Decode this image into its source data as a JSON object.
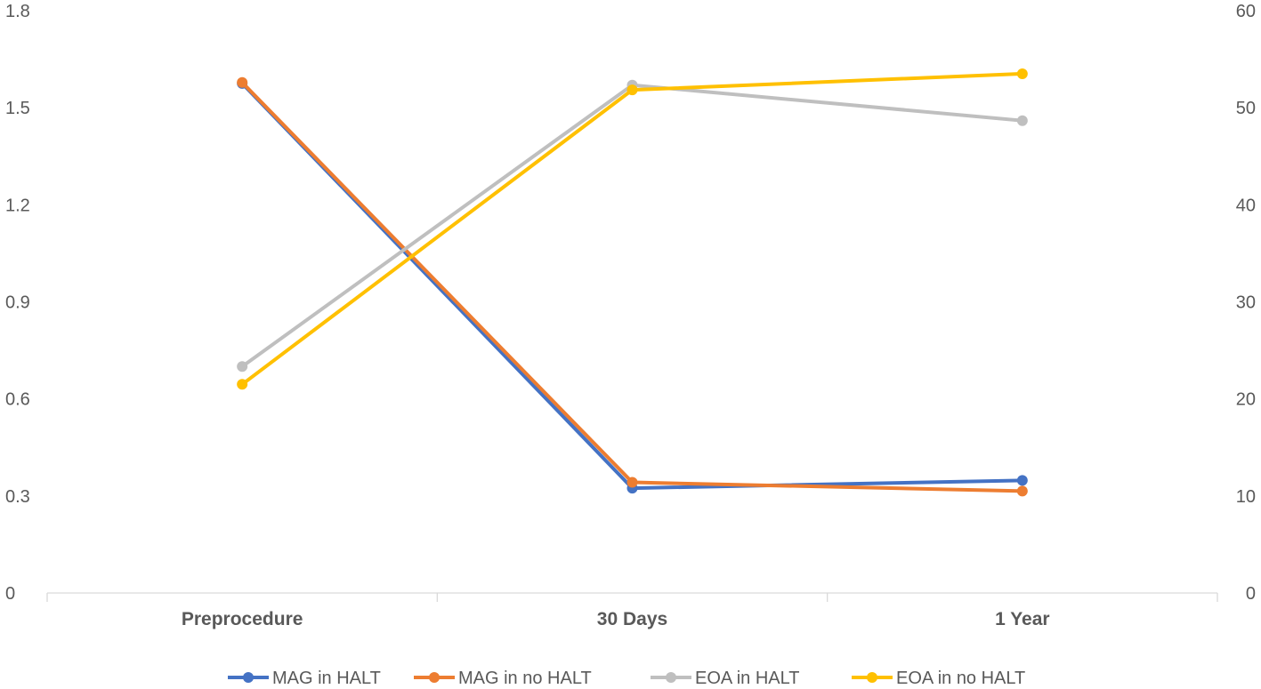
{
  "chart_data": {
    "type": "line",
    "title": "",
    "xlabel": "",
    "ylabel": "",
    "y2label": "",
    "categories": [
      "Preprocedure",
      "30 Days",
      "1 Year"
    ],
    "y_left": {
      "min": 0,
      "max": 1.8,
      "ticks": [
        "0",
        "0.3",
        "0.6",
        "0.9",
        "1.2",
        "1.5",
        "1.8"
      ]
    },
    "y_right": {
      "min": 0,
      "max": 60,
      "ticks": [
        "0",
        "10",
        "20",
        "30",
        "40",
        "50",
        "60"
      ]
    },
    "grid": false,
    "legend_position": "bottom",
    "series": [
      {
        "name": "MAG in HALT",
        "axis": "right",
        "color": "#4472C4",
        "values": [
          52.5,
          10.8,
          11.6
        ]
      },
      {
        "name": "MAG in no HALT",
        "axis": "right",
        "color": "#ED7D31",
        "values": [
          52.6,
          11.4,
          10.5
        ]
      },
      {
        "name": "EOA in HALT",
        "axis": "left",
        "color": "#BFBFBF",
        "values": [
          0.7,
          1.57,
          1.46
        ]
      },
      {
        "name": "EOA in no HALT",
        "axis": "left",
        "color": "#FFC000",
        "values": [
          0.645,
          1.555,
          1.605
        ]
      }
    ]
  }
}
